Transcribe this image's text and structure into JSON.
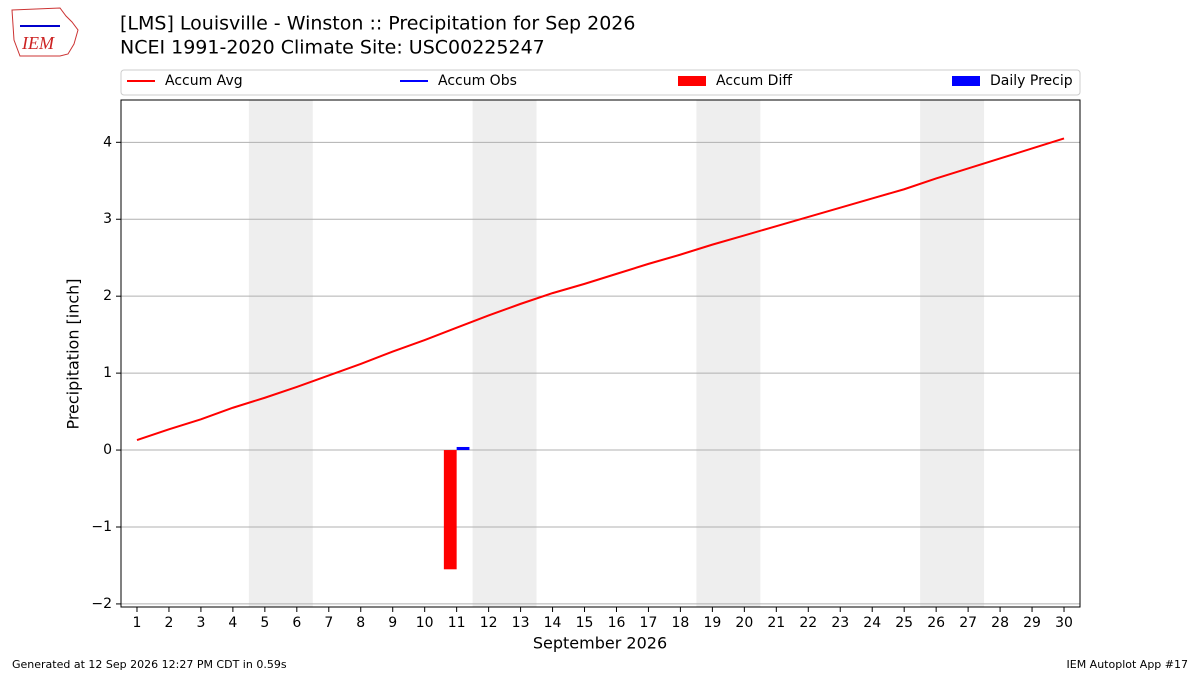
{
  "logo": "IEM",
  "footer": {
    "left": "Generated at 12 Sep 2026 12:27 PM CDT in 0.59s",
    "right": "IEM Autoplot App #17"
  },
  "chart_data": {
    "type": "line",
    "title": "[LMS] Louisville - Winston :: Precipitation for Sep 2026",
    "subtitle": "NCEI 1991-2020 Climate Site: USC00225247",
    "x_label": "September 2026",
    "y_label": "Precipitation [inch]",
    "x": [
      1,
      2,
      3,
      4,
      5,
      6,
      7,
      8,
      9,
      10,
      11,
      12,
      13,
      14,
      15,
      16,
      17,
      18,
      19,
      20,
      21,
      22,
      23,
      24,
      25,
      26,
      27,
      28,
      29,
      30
    ],
    "xlim": [
      0.5,
      30.5
    ],
    "xticks": [
      1,
      2,
      3,
      4,
      5,
      6,
      7,
      8,
      9,
      10,
      11,
      12,
      13,
      14,
      15,
      16,
      17,
      18,
      19,
      20,
      21,
      22,
      23,
      24,
      25,
      26,
      27,
      28,
      29,
      30
    ],
    "ylim": [
      -2.04,
      4.55
    ],
    "yticks": [
      {
        "value": -2,
        "label": "−2"
      },
      {
        "value": -1,
        "label": "−1"
      },
      0,
      1,
      2,
      3,
      4
    ],
    "grid": true,
    "shaded_spans": [
      [
        4.5,
        6.5
      ],
      [
        11.5,
        13.5
      ],
      [
        18.5,
        20.5
      ],
      [
        25.5,
        27.5
      ]
    ],
    "shade_color": "#eeeeee",
    "legend": "top",
    "series": [
      {
        "name": "Accum Avg",
        "color": "#ff0000",
        "kind": "line",
        "values": [
          0.13,
          0.27,
          0.4,
          0.55,
          0.68,
          0.82,
          0.97,
          1.12,
          1.28,
          1.43,
          1.59,
          1.75,
          1.9,
          2.04,
          2.16,
          2.29,
          2.42,
          2.54,
          2.67,
          2.79,
          2.91,
          3.03,
          3.15,
          3.27,
          3.39,
          3.53,
          3.66,
          3.79,
          3.92,
          4.05
        ]
      },
      {
        "name": "Accum Obs",
        "color": "#0000ff",
        "kind": "line",
        "values": [
          null,
          null,
          null,
          null,
          null,
          null,
          null,
          null,
          null,
          null,
          null,
          null,
          null,
          null,
          null,
          null,
          null,
          null,
          null,
          null,
          null,
          null,
          null,
          null,
          null,
          null,
          null,
          null,
          null,
          null
        ]
      },
      {
        "name": "Accum Diff",
        "color": "#ff0000",
        "kind": "bar",
        "offset": -0.2,
        "width": 0.4,
        "values": [
          null,
          null,
          null,
          null,
          null,
          null,
          null,
          null,
          null,
          null,
          -1.55,
          null,
          null,
          null,
          null,
          null,
          null,
          null,
          null,
          null,
          null,
          null,
          null,
          null,
          null,
          null,
          null,
          null,
          null,
          null
        ]
      },
      {
        "name": "Daily Precip",
        "color": "#0000ff",
        "kind": "bar",
        "offset": 0.2,
        "width": 0.4,
        "values": [
          null,
          null,
          null,
          null,
          null,
          null,
          null,
          null,
          null,
          null,
          0.04,
          null,
          null,
          null,
          null,
          null,
          null,
          null,
          null,
          null,
          null,
          null,
          null,
          null,
          null,
          null,
          null,
          null,
          null,
          null
        ]
      }
    ]
  }
}
